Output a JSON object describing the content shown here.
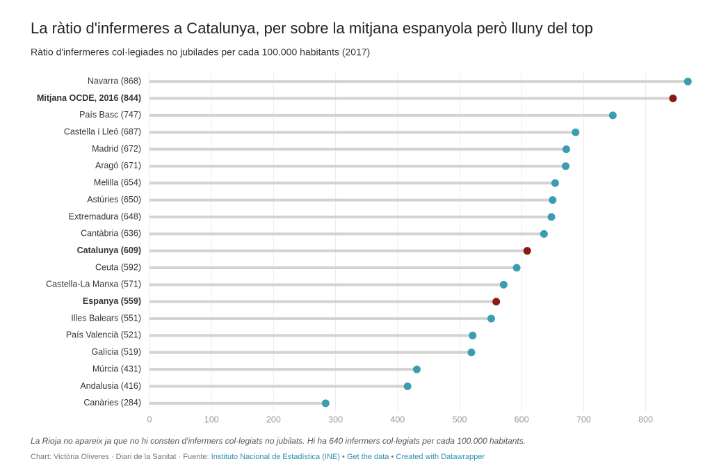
{
  "chart_data": {
    "type": "lollipop",
    "title": "La ràtio d'infermeres a Catalunya, per sobre la mitjana espanyola però lluny del top",
    "subtitle": "Ràtio d'infermeres col·legiades no jubilades per cada 100.000 habitants (2017)",
    "categories": [
      "Navarra (868)",
      "Mitjana OCDE, 2016 (844)",
      "País Basc (747)",
      "Castella i Lleó (687)",
      "Madrid (672)",
      "Aragó (671)",
      "Melilla (654)",
      "Astúries (650)",
      "Extremadura (648)",
      "Cantàbria (636)",
      "Catalunya (609)",
      "Ceuta (592)",
      "Castella-La Manxa (571)",
      "Espanya (559)",
      "Illes Balears (551)",
      "País Valencià (521)",
      "Galícia (519)",
      "Múrcia (431)",
      "Andalusia (416)",
      "Canàries (284)"
    ],
    "values": [
      868,
      844,
      747,
      687,
      672,
      671,
      654,
      650,
      648,
      636,
      609,
      592,
      571,
      559,
      551,
      521,
      519,
      431,
      416,
      284
    ],
    "color": "#3a9eb0",
    "colors": [
      "#3a9eb0",
      "#8b1a14",
      "#3a9eb0",
      "#3a9eb0",
      "#3a9eb0",
      "#3a9eb0",
      "#3a9eb0",
      "#3a9eb0",
      "#3a9eb0",
      "#3a9eb0",
      "#8b1a14",
      "#3a9eb0",
      "#3a9eb0",
      "#8b1a14",
      "#3a9eb0",
      "#3a9eb0",
      "#3a9eb0",
      "#3a9eb0",
      "#3a9eb0",
      "#3a9eb0"
    ],
    "xlim": [
      0,
      880
    ],
    "xticks": [
      0,
      100,
      200,
      300,
      400,
      500,
      600,
      700,
      800
    ],
    "grid": true,
    "note": "La Rioja no apareix ja que no hi consten d'infermers col·legiats no jubilats. Hi ha 640 infermers col·legiats per cada 100.000 habitants.",
    "credit": "Chart: Victòria Oliveres · Diari de la Sanitat · Fuente:",
    "source_link": "Instituto Nacional de Estadística (INE)",
    "separator": "•",
    "get_data": "Get the data",
    "made_with": "Created with Datawrapper"
  }
}
